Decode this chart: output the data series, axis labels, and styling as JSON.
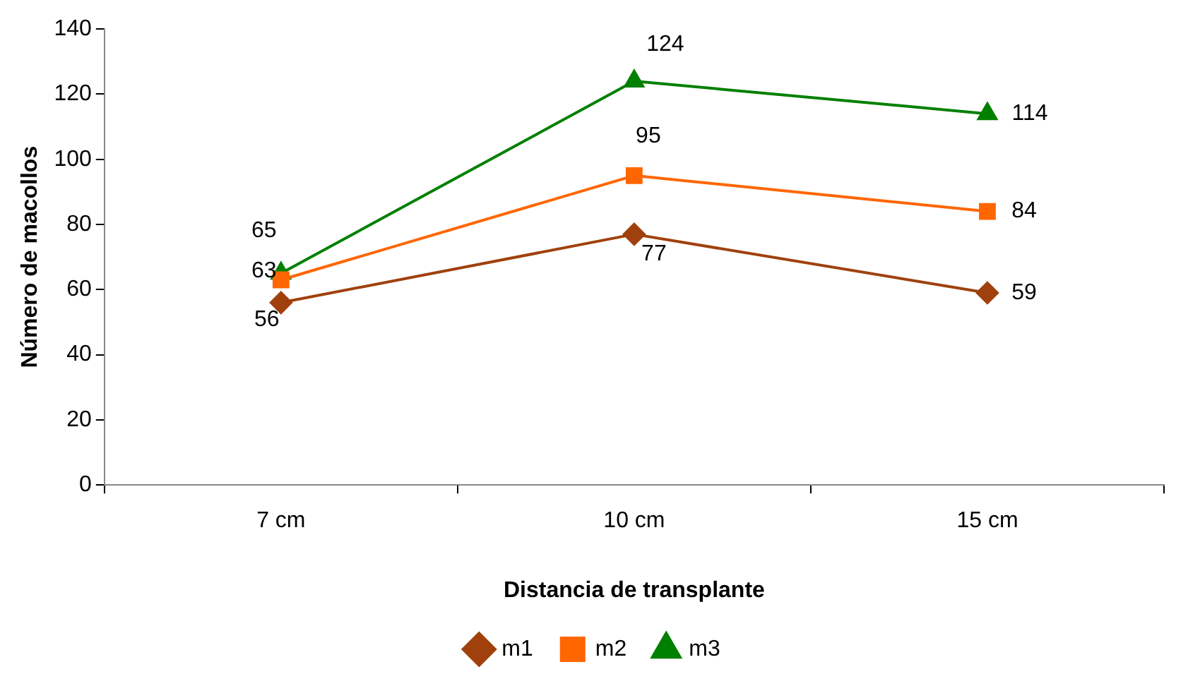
{
  "chart_data": {
    "type": "line",
    "xlabel": "Distancia de transplante",
    "ylabel": "Número de macollos",
    "categories": [
      "7 cm",
      "10 cm",
      "15 cm"
    ],
    "series": [
      {
        "name": "m1",
        "color": "#a0410d",
        "values": [
          56,
          77,
          59
        ],
        "marker": "diamond"
      },
      {
        "name": "m2",
        "color": "#ff6600",
        "values": [
          63,
          95,
          84
        ],
        "marker": "square"
      },
      {
        "name": "m3",
        "color": "#008000",
        "values": [
          65,
          124,
          114
        ],
        "marker": "triangle"
      }
    ],
    "ylim": [
      0,
      140
    ],
    "yticks": [
      0,
      20,
      40,
      60,
      80,
      100,
      120,
      140
    ],
    "grid": false,
    "legend": "bottom",
    "data_labels": true,
    "line_style": "solid"
  }
}
